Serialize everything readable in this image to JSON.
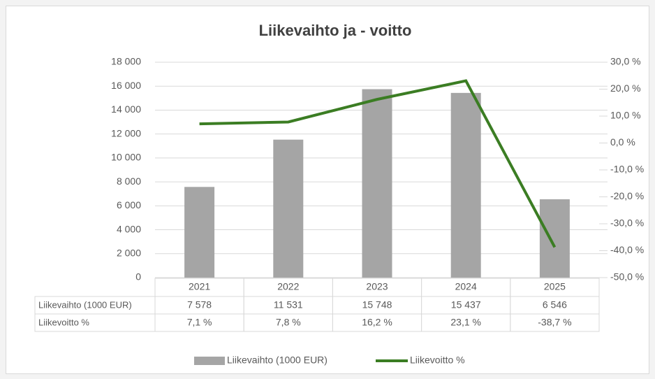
{
  "chart_data": {
    "type": "bar",
    "title": "Liikevaihto ja - voitto",
    "categories": [
      "2021",
      "2022",
      "2023",
      "2024",
      "2025"
    ],
    "series": [
      {
        "name": "Liikevaihto (1000 EUR)",
        "color": "#a5a5a5",
        "values": [
          7578,
          11531,
          15748,
          15437,
          6546
        ],
        "value_labels": [
          "7 578",
          "11 531",
          "15 748",
          "15 437",
          "6 546"
        ]
      },
      {
        "name": "Liikevoitto %",
        "color": "#3b7d23",
        "type": "line",
        "axis": "y2",
        "values": [
          7.1,
          7.8,
          16.2,
          23.1,
          -38.7
        ],
        "value_labels": [
          "7,1 %",
          "7,8 %",
          "16,2 %",
          "23,1 %",
          "-38,7 %"
        ]
      }
    ],
    "ylim": [
      0,
      18000
    ],
    "yticks": [
      0,
      {
        "value": 2000,
        "label": "2 000"
      },
      {
        "value": 4000,
        "label": "4 000"
      },
      {
        "value": 6000,
        "label": "6 000"
      },
      {
        "value": 8000,
        "label": "8 000"
      },
      {
        "value": 10000,
        "label": "10 000"
      },
      {
        "value": 12000,
        "label": "12 000"
      },
      {
        "value": 14000,
        "label": "14 000"
      },
      {
        "value": 16000,
        "label": "16 000"
      },
      {
        "value": 18000,
        "label": "18 000"
      }
    ],
    "y2lim": [
      -50,
      30
    ],
    "y2ticks": [
      {
        "value": -50,
        "label": "-50,0 %"
      },
      {
        "value": -40,
        "label": "-40,0 %"
      },
      {
        "value": -30,
        "label": "-30,0 %"
      },
      {
        "value": -20,
        "label": "-20,0 %"
      },
      {
        "value": -10,
        "label": "-10,0 %"
      },
      {
        "value": 0,
        "label": "0,0 %"
      },
      {
        "value": 10,
        "label": "10,0 %"
      },
      {
        "value": 20,
        "label": "20,0 %"
      },
      {
        "value": 30,
        "label": "30,0 %"
      }
    ],
    "grid": true,
    "legend": "bottom"
  }
}
